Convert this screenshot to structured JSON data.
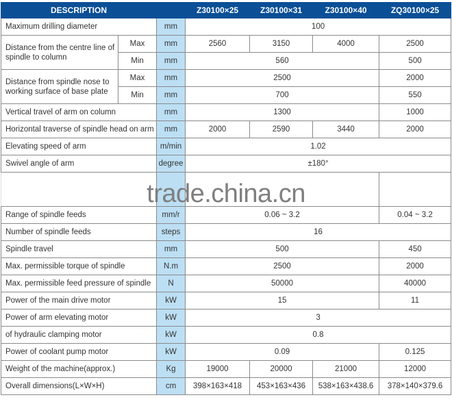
{
  "header": {
    "description": "DESCRIPTION",
    "unit": "",
    "models": [
      "Z30100×25",
      "Z30100×31",
      "Z30100×40",
      "ZQ30100×25"
    ]
  },
  "colors": {
    "header_bg": "#0b4f96",
    "unit_bg": "#bcdff4"
  },
  "rows_top": [
    {
      "label": "Maximum drilling diameter",
      "unit": "mm",
      "values": [
        "100"
      ]
    },
    {
      "label": "Distance from the centre line of spindle to column",
      "sub": [
        {
          "label": "Max",
          "unit": "mm",
          "values": [
            "2560",
            "3150",
            "4000",
            "2500"
          ]
        },
        {
          "label": "Min",
          "unit": "mm",
          "values": [
            "560",
            "500"
          ]
        }
      ]
    },
    {
      "label": "Distance from spindle nose to working surface of base plate",
      "sub": [
        {
          "label": "Max",
          "unit": "mm",
          "values": [
            "2500",
            "2000"
          ]
        },
        {
          "label": "Min",
          "unit": "mm",
          "values": [
            "700",
            "550"
          ]
        }
      ]
    },
    {
      "label": "Vertical travel of arm on column",
      "unit": "mm",
      "values": [
        "1300",
        "1000"
      ]
    },
    {
      "label": "Horizontal traverse of spindle head on arm",
      "unit": "mm",
      "values": [
        "2000",
        "2590",
        "3440",
        "2000"
      ]
    },
    {
      "label": "Elevating speed of arm",
      "unit": "m/min",
      "values": [
        "1.02"
      ]
    },
    {
      "label": "Swivel angle of arm",
      "unit": "degree",
      "values": [
        "±180°"
      ]
    }
  ],
  "watermark": "trade.china.cn",
  "rows_bottom": [
    {
      "label": "Range of spindle feeds",
      "unit": "mm/r",
      "values": [
        "0.06 ~ 3.2",
        "0.04 ~ 3.2"
      ]
    },
    {
      "label": "Number of spindle feeds",
      "unit": "steps",
      "values": [
        "16"
      ]
    },
    {
      "label": "Spindle travel",
      "unit": "mm",
      "values": [
        "500",
        "450"
      ]
    },
    {
      "label": "Max. permissible torque of spindle",
      "unit": "N.m",
      "values": [
        "2500",
        "2000"
      ]
    },
    {
      "label": "Max. permissible feed pressure of spindle",
      "unit": "N",
      "values": [
        "50000",
        "40000"
      ]
    },
    {
      "label": "Power of the main drive motor",
      "unit": "kW",
      "values": [
        "15",
        "11"
      ]
    },
    {
      "label": "Power of arm elevating  motor",
      "unit": "kW",
      "values": [
        "3"
      ]
    },
    {
      "label": "of hydraulic clamping motor",
      "unit": "kW",
      "values": [
        "0.8"
      ]
    },
    {
      "label": "Power of coolant pump motor",
      "unit": "kW",
      "values": [
        "0.09",
        "0.125"
      ]
    },
    {
      "label": "Weight of the machine(approx.)",
      "unit": "Kg",
      "values": [
        "19000",
        "20000",
        "21000",
        "12000"
      ]
    },
    {
      "label": "Overall dimensions(L×W×H)",
      "unit": "cm",
      "values": [
        "398×163×418",
        "453×163×436",
        "538×163×438.6",
        "378×140×379.6"
      ]
    }
  ]
}
